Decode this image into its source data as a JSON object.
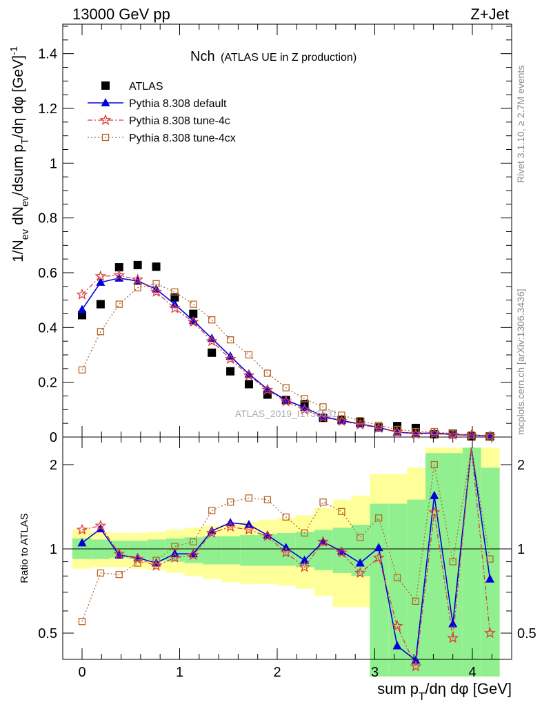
{
  "header": {
    "energy_label": "13000 GeV pp",
    "process_label": "Z+Jet"
  },
  "side_labels": {
    "rivet": "Rivet 3.1.10, ≥ 2.7M events",
    "mcplots": "mcplots.cern.ch [arXiv:1306.3436]"
  },
  "watermark": "ATLAS_2019_I1736531",
  "colors": {
    "atlas": "#000000",
    "default": "#0000dd",
    "tune4c": "#e03a3a",
    "tune4cx": "#b8662a",
    "band_green": "#90f090",
    "band_yellow": "#ffff99"
  },
  "chart_data": {
    "type": "line",
    "title_main": "Nch",
    "title_sub": "(ATLAS UE in Z production)",
    "xlabel": "sum p_T/dη dφ [GeV]",
    "ylabel": "1/N_ev dN_ev/dsum p_T/dη dφ [GeV]^-1",
    "ratio_ylabel": "Ratio to ATLAS",
    "xlim": [
      -0.2,
      4.35
    ],
    "ylim": [
      0,
      1.5
    ],
    "ratio_ylim": [
      0.35,
      2.3
    ],
    "ratio_scale": "log",
    "x_ticks": [
      0,
      1,
      2,
      3,
      4
    ],
    "y_ticks": [
      0.2,
      0.4,
      0.6,
      0.8,
      1,
      1.2,
      1.4
    ],
    "ratio_ticks": [
      0.5,
      1,
      2
    ],
    "legend_position": "top-left",
    "x": [
      0,
      0.19,
      0.38,
      0.57,
      0.76,
      0.95,
      1.14,
      1.33,
      1.52,
      1.71,
      1.9,
      2.09,
      2.28,
      2.47,
      2.66,
      2.85,
      3.04,
      3.23,
      3.42,
      3.61,
      3.8,
      3.99,
      4.18
    ],
    "series": [
      {
        "name": "ATLAS",
        "key": "atlas",
        "style": "square_filled",
        "values": [
          0.445,
          0.485,
          0.62,
          0.628,
          0.622,
          0.51,
          0.45,
          0.308,
          0.24,
          0.193,
          0.155,
          0.135,
          0.12,
          0.07,
          0.063,
          0.055,
          0.035,
          0.04,
          0.033,
          0.01,
          0.012,
          0.002,
          0.002
        ]
      },
      {
        "name": "Pythia 8.308 default",
        "key": "default",
        "style": "triangle_solid",
        "values": [
          0.465,
          0.565,
          0.58,
          0.57,
          0.54,
          0.485,
          0.425,
          0.36,
          0.295,
          0.23,
          0.175,
          0.135,
          0.108,
          0.075,
          0.06,
          0.048,
          0.035,
          0.018,
          0.013,
          0.015,
          0.009,
          0.007,
          0.004
        ],
        "ratio": [
          1.05,
          1.18,
          0.95,
          0.93,
          0.89,
          0.96,
          0.96,
          1.16,
          1.24,
          1.22,
          1.12,
          1.01,
          0.91,
          1.06,
          0.98,
          0.89,
          1.01,
          0.45,
          0.4,
          1.55,
          0.54,
          2.3,
          0.78
        ]
      },
      {
        "name": "Pythia 8.308 tune-4c",
        "key": "tune4c",
        "style": "star_dashdot",
        "values": [
          0.52,
          0.587,
          0.59,
          0.575,
          0.53,
          0.47,
          0.42,
          0.35,
          0.285,
          0.225,
          0.172,
          0.13,
          0.1,
          0.072,
          0.058,
          0.045,
          0.033,
          0.018,
          0.011,
          0.012,
          0.008,
          0.006,
          0.003
        ],
        "ratio": [
          1.17,
          1.21,
          0.96,
          0.92,
          0.87,
          0.93,
          0.95,
          1.14,
          1.2,
          1.17,
          1.11,
          0.97,
          0.86,
          1.06,
          0.97,
          0.82,
          0.93,
          0.53,
          0.38,
          1.35,
          0.48,
          2.3,
          0.5
        ]
      },
      {
        "name": "Pythia 8.308 tune-4cx",
        "key": "tune4cx",
        "style": "open_square_dotted",
        "values": [
          0.245,
          0.385,
          0.485,
          0.545,
          0.56,
          0.53,
          0.485,
          0.428,
          0.355,
          0.3,
          0.233,
          0.18,
          0.14,
          0.11,
          0.08,
          0.06,
          0.043,
          0.028,
          0.02,
          0.02,
          0.012,
          0.008,
          0.004
        ],
        "ratio": [
          0.55,
          0.82,
          0.81,
          0.89,
          0.91,
          1.02,
          1.06,
          1.37,
          1.47,
          1.52,
          1.5,
          1.3,
          1.14,
          1.47,
          1.36,
          1.1,
          1.29,
          0.79,
          0.65,
          2.0,
          0.9,
          2.3,
          0.92
        ]
      }
    ],
    "ratio_band": {
      "x_edges": [
        -0.1,
        0.1,
        0.29,
        0.48,
        0.67,
        0.86,
        1.05,
        1.24,
        1.43,
        1.62,
        1.81,
        2.0,
        2.19,
        2.38,
        2.57,
        2.76,
        2.95,
        3.14,
        3.33,
        3.52,
        3.71,
        3.9,
        4.09,
        4.28
      ],
      "green_lo": [
        0.92,
        0.92,
        0.93,
        0.92,
        0.91,
        0.9,
        0.89,
        0.88,
        0.88,
        0.87,
        0.87,
        0.87,
        0.86,
        0.84,
        0.82,
        0.8,
        0.35,
        0.35,
        0.35,
        0.35,
        0.35,
        0.35,
        0.35
      ],
      "green_hi": [
        1.09,
        1.08,
        1.07,
        1.07,
        1.08,
        1.09,
        1.1,
        1.11,
        1.11,
        1.12,
        1.13,
        1.14,
        1.15,
        1.17,
        1.19,
        1.22,
        1.45,
        1.45,
        1.5,
        2.2,
        2.2,
        2.3,
        1.95
      ],
      "yellow_lo": [
        0.85,
        0.86,
        0.86,
        0.85,
        0.84,
        0.82,
        0.8,
        0.78,
        0.76,
        0.75,
        0.75,
        0.74,
        0.72,
        0.68,
        0.62,
        0.62,
        0.35,
        0.35,
        0.35,
        0.35,
        0.35,
        0.35,
        0.35
      ],
      "yellow_hi": [
        1.17,
        1.15,
        1.14,
        1.14,
        1.15,
        1.17,
        1.19,
        1.21,
        1.22,
        1.25,
        1.27,
        1.29,
        1.32,
        1.4,
        1.5,
        1.55,
        1.85,
        1.85,
        1.95,
        2.3,
        2.3,
        2.3,
        2.3
      ]
    }
  }
}
